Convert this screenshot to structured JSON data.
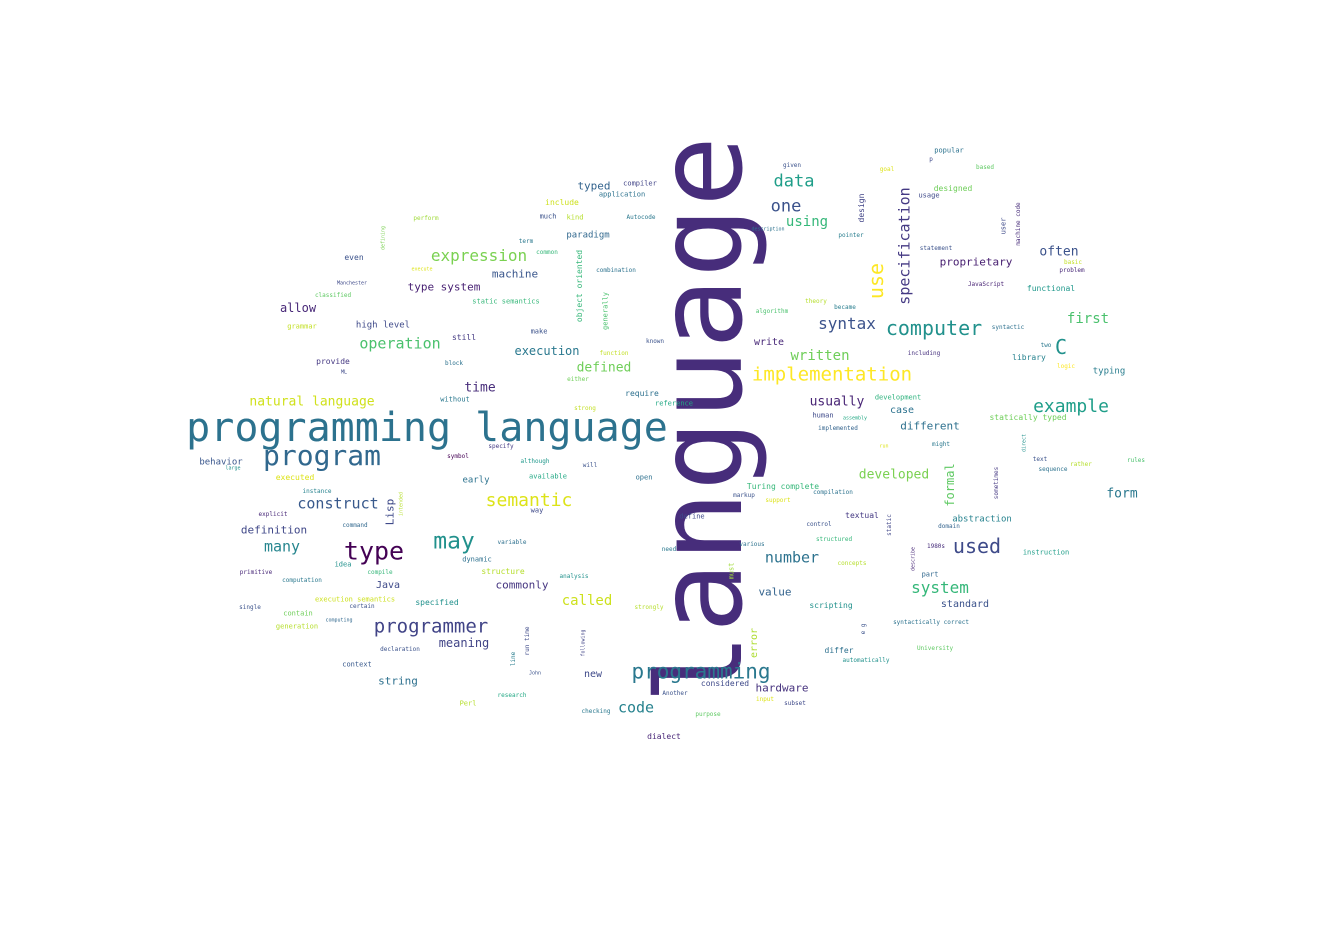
{
  "words": [
    {
      "text": "language",
      "color": "#472d7b"
    },
    {
      "text": "programming language",
      "color": "#2c728e"
    },
    {
      "text": "program",
      "color": "#31688e"
    },
    {
      "text": "type",
      "color": "#440154"
    },
    {
      "text": "may",
      "color": "#21918c"
    },
    {
      "text": "programming",
      "color": "#2a788e"
    },
    {
      "text": "programmer",
      "color": "#414487"
    },
    {
      "text": "implementation",
      "color": "#fde725"
    },
    {
      "text": "computer",
      "color": "#21918c"
    },
    {
      "text": "used",
      "color": "#3e4a89"
    },
    {
      "text": "example",
      "color": "#1f9e89"
    },
    {
      "text": "semantic",
      "color": "#dde318"
    },
    {
      "text": "syntax",
      "color": "#3b528b"
    },
    {
      "text": "use",
      "color": "#fde725"
    },
    {
      "text": "specification",
      "color": "#443983"
    },
    {
      "text": "data",
      "color": "#1f9e89"
    },
    {
      "text": "one",
      "color": "#3b528b"
    },
    {
      "text": "expression",
      "color": "#7ad151"
    },
    {
      "text": "C",
      "color": "#21918c"
    },
    {
      "text": "system",
      "color": "#35b779"
    },
    {
      "text": "construct",
      "color": "#38598c"
    },
    {
      "text": "number",
      "color": "#2c728e"
    },
    {
      "text": "code",
      "color": "#26828e"
    },
    {
      "text": "many",
      "color": "#25858e"
    },
    {
      "text": "written",
      "color": "#6ece58"
    },
    {
      "text": "using",
      "color": "#35b779"
    },
    {
      "text": "operation",
      "color": "#4ac16d"
    },
    {
      "text": "first",
      "color": "#4ac16d"
    },
    {
      "text": "natural language",
      "color": "#d0e11c"
    },
    {
      "text": "time",
      "color": "#472c7a"
    },
    {
      "text": "called",
      "color": "#cde11d"
    },
    {
      "text": "often",
      "color": "#3b528b"
    },
    {
      "text": "form",
      "color": "#2a788e"
    },
    {
      "text": "developed",
      "color": "#7ad151"
    },
    {
      "text": "defined",
      "color": "#6ece58"
    },
    {
      "text": "usually",
      "color": "#482475"
    },
    {
      "text": "allow",
      "color": "#482878"
    },
    {
      "text": "meaning",
      "color": "#414487"
    },
    {
      "text": "execution",
      "color": "#2a788e"
    },
    {
      "text": "formal",
      "color": "#5ec962"
    },
    {
      "text": "Lisp",
      "color": "#3e4989"
    },
    {
      "text": "machine",
      "color": "#39568c"
    },
    {
      "text": "typed",
      "color": "#33638d"
    },
    {
      "text": "type system",
      "color": "#482173"
    },
    {
      "text": "proprietary",
      "color": "#482071"
    },
    {
      "text": "different",
      "color": "#2d708e"
    },
    {
      "text": "definition",
      "color": "#3f4788"
    },
    {
      "text": "string",
      "color": "#2d708e"
    },
    {
      "text": "hardware",
      "color": "#46327e"
    },
    {
      "text": "value",
      "color": "#33638d"
    },
    {
      "text": "standard",
      "color": "#3b528b"
    },
    {
      "text": "commonly",
      "color": "#453581"
    },
    {
      "text": "Java",
      "color": "#3e4a89"
    },
    {
      "text": "new",
      "color": "#3e4989"
    },
    {
      "text": "write",
      "color": "#482878"
    },
    {
      "text": "behavior",
      "color": "#39568c"
    },
    {
      "text": "error",
      "color": "#addc30"
    },
    {
      "text": "case",
      "color": "#2c728e"
    },
    {
      "text": "paradigm",
      "color": "#31688e"
    },
    {
      "text": "high level",
      "color": "#3e4989"
    },
    {
      "text": "design",
      "color": "#414487"
    },
    {
      "text": "early",
      "color": "#2c728e"
    },
    {
      "text": "abstraction",
      "color": "#26828e"
    },
    {
      "text": "functional",
      "color": "#1f988b"
    },
    {
      "text": "typing",
      "color": "#287d8e"
    },
    {
      "text": "even",
      "color": "#3b528b"
    },
    {
      "text": "still",
      "color": "#443a83"
    },
    {
      "text": "provide",
      "color": "#453882"
    },
    {
      "text": "require",
      "color": "#2d708e"
    },
    {
      "text": "differ",
      "color": "#2d708e"
    },
    {
      "text": "library",
      "color": "#26828e"
    },
    {
      "text": "scripting",
      "color": "#21918c"
    },
    {
      "text": "dialect",
      "color": "#482677"
    },
    {
      "text": "considered",
      "color": "#3e4989"
    },
    {
      "text": "textual",
      "color": "#443983"
    },
    {
      "text": "context",
      "color": "#38598c"
    },
    {
      "text": "instruction",
      "color": "#1f9e89"
    },
    {
      "text": "statically typed",
      "color": "#6ece58"
    },
    {
      "text": "specified",
      "color": "#21918c"
    },
    {
      "text": "executed",
      "color": "#dde318"
    },
    {
      "text": "structure",
      "color": "#b5de2b"
    },
    {
      "text": "Turing complete",
      "color": "#35b779"
    },
    {
      "text": "make",
      "color": "#3b528b"
    },
    {
      "text": "designed",
      "color": "#6ece58"
    },
    {
      "text": "include",
      "color": "#cde11d"
    },
    {
      "text": "object oriented",
      "color": "#35b779"
    },
    {
      "text": "generally",
      "color": "#4ac16d"
    },
    {
      "text": "execution semantics",
      "color": "#cde11d"
    },
    {
      "text": "static semantics",
      "color": "#35b779"
    },
    {
      "text": "popular",
      "color": "#2c728e"
    },
    {
      "text": "much",
      "color": "#3b528b"
    },
    {
      "text": "without",
      "color": "#2a788e"
    },
    {
      "text": "reference",
      "color": "#22a884"
    },
    {
      "text": "development",
      "color": "#2db27d"
    },
    {
      "text": "available",
      "color": "#22a884"
    },
    {
      "text": "sometimes",
      "color": "#453882"
    },
    {
      "text": "compiler",
      "color": "#414487"
    },
    {
      "text": "application",
      "color": "#2c728e"
    },
    {
      "text": "term",
      "color": "#2a788e"
    },
    {
      "text": "grammar",
      "color": "#c2df23"
    },
    {
      "text": "classified",
      "color": "#5ec962"
    },
    {
      "text": "generation",
      "color": "#b5de2b"
    },
    {
      "text": "contain",
      "color": "#6ece58"
    },
    {
      "text": "certain",
      "color": "#3b528b"
    },
    {
      "text": "idea",
      "color": "#21918c"
    },
    {
      "text": "Perl",
      "color": "#b5de2b"
    },
    {
      "text": "line",
      "color": "#287d8e"
    },
    {
      "text": "run time",
      "color": "#3e4a89"
    },
    {
      "text": "machine code",
      "color": "#472c7a"
    },
    {
      "text": "user",
      "color": "#3e4a89"
    },
    {
      "text": "pointer",
      "color": "#287d8e"
    },
    {
      "text": "must",
      "color": "#a0da39"
    },
    {
      "text": "part",
      "color": "#31688e"
    },
    {
      "text": "instance",
      "color": "#26828e"
    },
    {
      "text": "way",
      "color": "#3e4989"
    },
    {
      "text": "symbol",
      "color": "#440154"
    },
    {
      "text": "specify",
      "color": "#443a83"
    },
    {
      "text": "although",
      "color": "#1f988b"
    },
    {
      "text": "will",
      "color": "#3b528b"
    },
    {
      "text": "open",
      "color": "#2d708e"
    },
    {
      "text": "define",
      "color": "#3e4989"
    },
    {
      "text": "markup",
      "color": "#3b528b"
    },
    {
      "text": "compilation",
      "color": "#2c728e"
    },
    {
      "text": "control",
      "color": "#3b528b"
    },
    {
      "text": "structured",
      "color": "#35b779"
    },
    {
      "text": "static",
      "color": "#404688"
    },
    {
      "text": "describe",
      "color": "#482878"
    },
    {
      "text": "domain",
      "color": "#33638d"
    },
    {
      "text": "1980s",
      "color": "#472d7b"
    },
    {
      "text": "syntactically correct",
      "color": "#2c728e"
    },
    {
      "text": "University",
      "color": "#5ec962"
    },
    {
      "text": "automatically",
      "color": "#21918c"
    },
    {
      "text": "e g",
      "color": "#3b528b"
    },
    {
      "text": "human",
      "color": "#3e4989"
    },
    {
      "text": "assembly",
      "color": "#22a884"
    },
    {
      "text": "implemented",
      "color": "#33638d"
    },
    {
      "text": "JavaScript",
      "color": "#482374"
    },
    {
      "text": "problem",
      "color": "#482878"
    },
    {
      "text": "statement",
      "color": "#3b528b"
    },
    {
      "text": "including",
      "color": "#46307e"
    },
    {
      "text": "text",
      "color": "#3b528b"
    },
    {
      "text": "sequence",
      "color": "#2c728e"
    },
    {
      "text": "direct",
      "color": "#21918c"
    },
    {
      "text": "two",
      "color": "#2a788e"
    },
    {
      "text": "logic",
      "color": "#fde725"
    },
    {
      "text": "rather",
      "color": "#b5de2b"
    },
    {
      "text": "rules",
      "color": "#4ac16d"
    },
    {
      "text": "basic",
      "color": "#c2df23"
    },
    {
      "text": "based",
      "color": "#5ec962"
    },
    {
      "text": "usage",
      "color": "#3e4989"
    },
    {
      "text": "goal",
      "color": "#dde318"
    },
    {
      "text": "p",
      "color": "#3e4989"
    },
    {
      "text": "given",
      "color": "#3b528b"
    },
    {
      "text": "description",
      "color": "#2c728e"
    },
    {
      "text": "became",
      "color": "#287d8e"
    },
    {
      "text": "theory",
      "color": "#b5de2b"
    },
    {
      "text": "algorithm",
      "color": "#4ac16d"
    },
    {
      "text": "Autocode",
      "color": "#2a788e"
    },
    {
      "text": "combination",
      "color": "#2c728e"
    },
    {
      "text": "kind",
      "color": "#b5de2b"
    },
    {
      "text": "common",
      "color": "#35b779"
    },
    {
      "text": "perform",
      "color": "#a0da39"
    },
    {
      "text": "defining",
      "color": "#7ad151"
    },
    {
      "text": "execute",
      "color": "#dde318"
    },
    {
      "text": "Manchester",
      "color": "#3e4989"
    },
    {
      "text": "ML",
      "color": "#3e4989"
    },
    {
      "text": "block",
      "color": "#2c728e"
    },
    {
      "text": "either",
      "color": "#6ece58"
    },
    {
      "text": "function",
      "color": "#c2df23"
    },
    {
      "text": "known",
      "color": "#3b528b"
    },
    {
      "text": "strong",
      "color": "#c2df23"
    },
    {
      "text": "large",
      "color": "#21918c"
    },
    {
      "text": "explicit",
      "color": "#482878"
    },
    {
      "text": "command",
      "color": "#31688e"
    },
    {
      "text": "intended",
      "color": "#b5de2b"
    },
    {
      "text": "variable",
      "color": "#2d708e"
    },
    {
      "text": "dynamic",
      "color": "#2d708e"
    },
    {
      "text": "primitive",
      "color": "#482878"
    },
    {
      "text": "computation",
      "color": "#2a788e"
    },
    {
      "text": "compile",
      "color": "#35b779"
    },
    {
      "text": "single",
      "color": "#3b528b"
    },
    {
      "text": "computing",
      "color": "#31688e"
    },
    {
      "text": "declaration",
      "color": "#3b528b"
    },
    {
      "text": "analysis",
      "color": "#21918c"
    },
    {
      "text": "strongly",
      "color": "#b5de2b"
    },
    {
      "text": "following",
      "color": "#414487"
    },
    {
      "text": "John",
      "color": "#3b528b"
    },
    {
      "text": "research",
      "color": "#22a884"
    },
    {
      "text": "checking",
      "color": "#2a788e"
    },
    {
      "text": "Another",
      "color": "#3b528b"
    },
    {
      "text": "purpose",
      "color": "#5ec962"
    },
    {
      "text": "input",
      "color": "#dde318"
    },
    {
      "text": "subset",
      "color": "#3e4989"
    },
    {
      "text": "support",
      "color": "#dde318"
    },
    {
      "text": "various",
      "color": "#2c728e"
    },
    {
      "text": "need",
      "color": "#2a788e"
    },
    {
      "text": "concepts",
      "color": "#b5de2b"
    },
    {
      "text": "run",
      "color": "#dde318"
    },
    {
      "text": "might",
      "color": "#2a788e"
    },
    {
      "text": "syntactic",
      "color": "#2d708e"
    }
  ]
}
